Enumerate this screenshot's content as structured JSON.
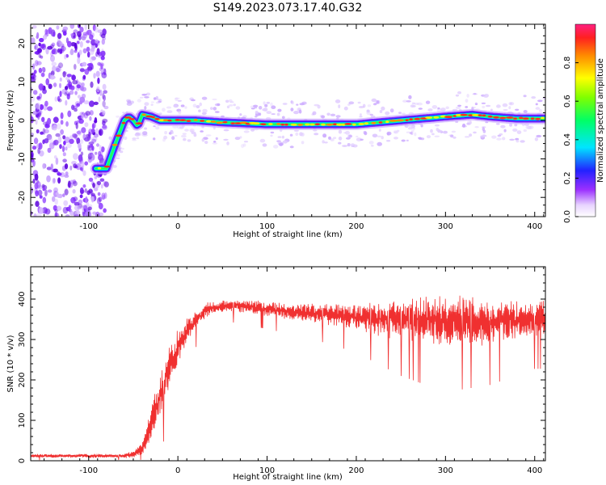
{
  "title": "S149.2023.073.17.40.G32",
  "chart_data": [
    {
      "type": "heatmap",
      "xlabel": "Height of straight line (km)",
      "ylabel": "Frequency (Hz)",
      "xlim": [
        -165,
        412
      ],
      "ylim": [
        -25,
        25
      ],
      "xticks": [
        "-100",
        "0",
        "100",
        "200",
        "300",
        "400"
      ],
      "yticks": [
        "-20",
        "-10",
        "0",
        "10",
        "20"
      ],
      "colorbar": {
        "label": "Normalized spectral amplitude",
        "range": [
          0,
          1
        ],
        "ticks": [
          "0.0",
          "0.2",
          "0.4",
          "0.6",
          "0.8"
        ]
      },
      "ridge": {
        "x": [
          -90,
          -80,
          -70,
          -60,
          -55,
          -50,
          -45,
          -40,
          -30,
          -20,
          0,
          20,
          50,
          100,
          150,
          180,
          200,
          250,
          300,
          330,
          350,
          380,
          412
        ],
        "y": [
          -12.5,
          -12.5,
          -6,
          0,
          1,
          0,
          -1.5,
          1.5,
          1,
          0,
          0,
          0,
          -0.5,
          -1,
          -1,
          -1,
          -1,
          0,
          1,
          1.5,
          1,
          0.5,
          0.5
        ]
      },
      "noise_region_x": [
        -165,
        -80
      ]
    },
    {
      "type": "line",
      "xlabel": "Height of straight line (km)",
      "ylabel": "SNR (10 * v/v)",
      "xlim": [
        -165,
        412
      ],
      "ylim": [
        0,
        480
      ],
      "xticks": [
        "-100",
        "0",
        "100",
        "200",
        "300",
        "400"
      ],
      "yticks": [
        "0",
        "100",
        "200",
        "300",
        "400"
      ],
      "color": "#f03030",
      "envelope": {
        "x": [
          -165,
          -60,
          -50,
          -40,
          -30,
          -20,
          -10,
          0,
          10,
          20,
          30,
          40,
          60,
          100,
          150,
          200,
          250,
          300,
          350,
          400,
          412
        ],
        "y": [
          12,
          12,
          15,
          30,
          90,
          160,
          230,
          280,
          320,
          350,
          370,
          380,
          385,
          375,
          365,
          355,
          350,
          345,
          345,
          350,
          350
        ],
        "noise": [
          4,
          4,
          8,
          15,
          35,
          40,
          40,
          35,
          25,
          20,
          15,
          12,
          12,
          14,
          18,
          25,
          40,
          50,
          45,
          35,
          35
        ]
      }
    }
  ]
}
